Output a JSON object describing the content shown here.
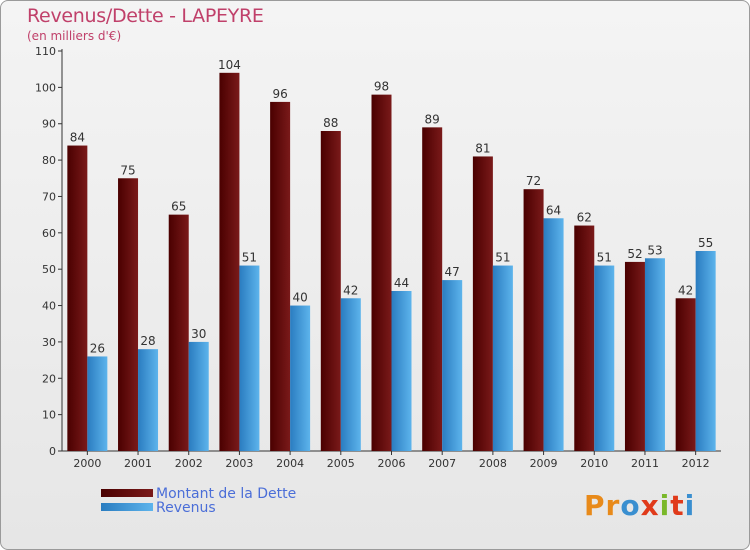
{
  "header": {
    "title": "Revenus/Dette - LAPEYRE",
    "subtitle": "(en milliers d'€)"
  },
  "legend": [
    {
      "label": "Montant de la Dette",
      "color": "#6b1010"
    },
    {
      "label": "Revenus",
      "color": "#3a9ad8"
    }
  ],
  "logo": {
    "text": "Proxiti",
    "letters": [
      "P",
      "r",
      "o",
      "x",
      "i",
      "t",
      "i"
    ],
    "colors": [
      "#e88a1a",
      "#e88a1a",
      "#3a8fd0",
      "#e03a1a",
      "#7ab82a",
      "#e03a1a",
      "#3a8fd0"
    ]
  },
  "chart_data": {
    "type": "bar",
    "categories": [
      "2000",
      "2001",
      "2002",
      "2003",
      "2004",
      "2005",
      "2006",
      "2007",
      "2008",
      "2009",
      "2010",
      "2011",
      "2012"
    ],
    "series": [
      {
        "name": "Montant de la Dette",
        "color": "#6b1010",
        "values": [
          84,
          75,
          65,
          104,
          96,
          88,
          98,
          89,
          81,
          72,
          62,
          52,
          42
        ]
      },
      {
        "name": "Revenus",
        "color": "#3a9ad8",
        "values": [
          26,
          28,
          30,
          51,
          40,
          42,
          44,
          47,
          51,
          64,
          51,
          53,
          55
        ]
      }
    ],
    "title": "Revenus/Dette - LAPEYRE",
    "ylabel": "(en milliers d'€)",
    "ylim": [
      0,
      110
    ],
    "yticks": [
      0,
      10,
      20,
      30,
      40,
      50,
      60,
      70,
      80,
      90,
      100,
      110
    ],
    "grid": false,
    "legend_position": "bottom-left"
  }
}
